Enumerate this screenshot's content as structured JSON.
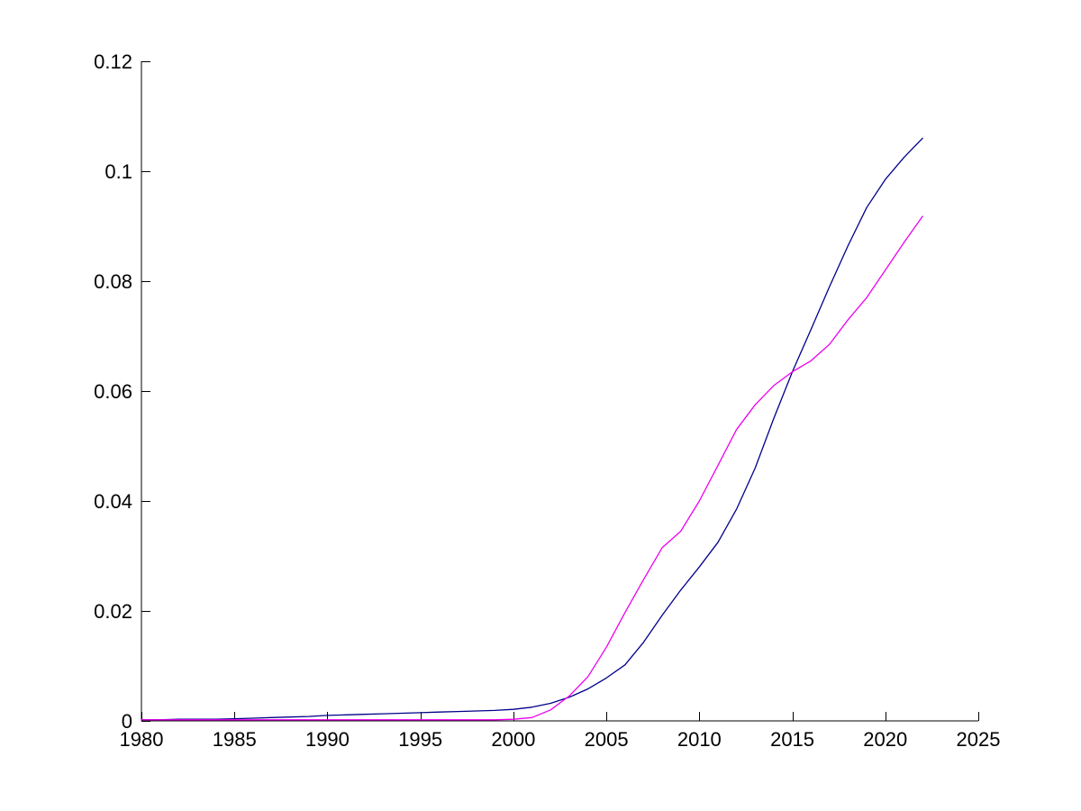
{
  "figure": {
    "background_color": "#ffffff",
    "axis_color": "#000000",
    "title": ""
  },
  "chart_data": {
    "type": "line",
    "title": "",
    "xlabel": "",
    "ylabel": "",
    "xlim": [
      1980,
      2025
    ],
    "ylim": [
      0,
      0.12
    ],
    "xticks": [
      1980,
      1985,
      1990,
      1995,
      2000,
      2005,
      2010,
      2015,
      2020,
      2025
    ],
    "xtick_labels": [
      "1980",
      "1985",
      "1990",
      "1995",
      "2000",
      "2005",
      "2010",
      "2015",
      "2020",
      "2025"
    ],
    "yticks": [
      0,
      0.02,
      0.04,
      0.06,
      0.08,
      0.1,
      0.12
    ],
    "ytick_labels": [
      "0",
      "0.02",
      "0.04",
      "0.06",
      "0.08",
      "0.1",
      "0.12"
    ],
    "grid": false,
    "legend": null,
    "axes_style": "open-box: left and bottom spines only, inward tick marks, MATLAB-like",
    "x": [
      1980,
      1981,
      1982,
      1983,
      1984,
      1985,
      1986,
      1987,
      1988,
      1989,
      1990,
      1991,
      1992,
      1993,
      1994,
      1995,
      1996,
      1997,
      1998,
      1999,
      2000,
      2001,
      2002,
      2003,
      2004,
      2005,
      2006,
      2007,
      2008,
      2009,
      2010,
      2011,
      2012,
      2013,
      2014,
      2015,
      2016,
      2017,
      2018,
      2019,
      2020,
      2021,
      2022
    ],
    "series": [
      {
        "name": "dark-blue-line",
        "color": "#00008B",
        "values": [
          0.0002,
          0.0002,
          0.0003,
          0.0003,
          0.0003,
          0.0004,
          0.0005,
          0.0006,
          0.0007,
          0.0008,
          0.001,
          0.0011,
          0.0012,
          0.0013,
          0.0014,
          0.0015,
          0.0016,
          0.0017,
          0.0018,
          0.0019,
          0.0021,
          0.0025,
          0.0032,
          0.0043,
          0.0058,
          0.0078,
          0.0102,
          0.0143,
          0.0192,
          0.0238,
          0.028,
          0.0325,
          0.0385,
          0.046,
          0.055,
          0.0635,
          0.0712,
          0.079,
          0.0865,
          0.0934,
          0.0985,
          0.1025,
          0.106
        ]
      },
      {
        "name": "magenta-line",
        "color": "#EE00EE",
        "values": [
          0.0002,
          0.0002,
          0.0002,
          0.0002,
          0.0002,
          0.0002,
          0.0002,
          0.0002,
          0.0002,
          0.0002,
          0.0002,
          0.0002,
          0.0002,
          0.0002,
          0.0002,
          0.0002,
          0.0002,
          0.0002,
          0.0002,
          0.0002,
          0.0003,
          0.0006,
          0.002,
          0.0045,
          0.008,
          0.0134,
          0.0197,
          0.0257,
          0.0315,
          0.0345,
          0.04,
          0.0465,
          0.053,
          0.0575,
          0.061,
          0.0635,
          0.0655,
          0.0685,
          0.073,
          0.077,
          0.082,
          0.087,
          0.0918
        ]
      }
    ]
  }
}
